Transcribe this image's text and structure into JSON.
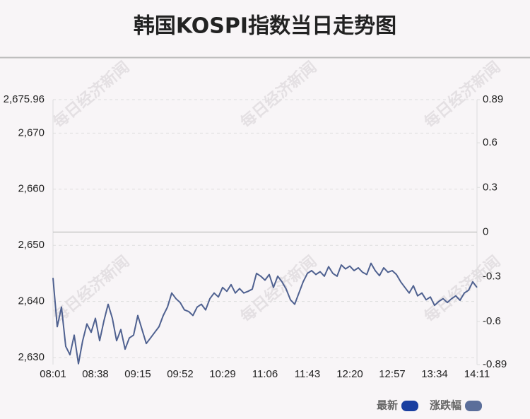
{
  "chart_data": {
    "type": "line",
    "title": "韩国KOSPI指数当日走势图",
    "watermark": "每日经济新闻",
    "categories": [
      "08:01",
      null,
      null,
      null,
      null,
      null,
      null,
      null,
      null,
      null,
      "08:38",
      null,
      null,
      null,
      null,
      null,
      null,
      null,
      null,
      null,
      "09:15",
      null,
      null,
      null,
      null,
      null,
      null,
      null,
      null,
      null,
      "09:52",
      null,
      null,
      null,
      null,
      null,
      null,
      null,
      null,
      null,
      "10:29",
      null,
      null,
      null,
      null,
      null,
      null,
      null,
      null,
      null,
      "11:06",
      null,
      null,
      null,
      null,
      null,
      null,
      null,
      null,
      null,
      "11:43",
      null,
      null,
      null,
      null,
      null,
      null,
      null,
      null,
      null,
      "12:20",
      null,
      null,
      null,
      null,
      null,
      null,
      null,
      null,
      null,
      "12:57",
      null,
      null,
      null,
      null,
      null,
      null,
      null,
      null,
      null,
      "13:34",
      null,
      null,
      null,
      null,
      null,
      null,
      null,
      null,
      null,
      "14:11"
    ],
    "series": [
      {
        "color": "#4f6190",
        "values": [
          2644.2,
          2635.5,
          2639,
          2632,
          2630.5,
          2634,
          2628.9,
          2633,
          2636,
          2634.5,
          2637,
          2633,
          2636.5,
          2639.5,
          2637,
          2633,
          2635,
          2631.5,
          2633.5,
          2634,
          2637.5,
          2635,
          2632.5,
          2633.5,
          2634.5,
          2635.5,
          2637.5,
          2639,
          2641.5,
          2640.5,
          2639.8,
          2638.5,
          2638.2,
          2637.5,
          2639,
          2639.5,
          2638.5,
          2640.5,
          2641.5,
          2640.8,
          2642.5,
          2641.8,
          2643,
          2641.5,
          2642.3,
          2641.5,
          2641.8,
          2642.2,
          2645,
          2644.5,
          2643.8,
          2644.8,
          2642.5,
          2644.5,
          2643.5,
          2642.2,
          2640.3,
          2639.5,
          2641.5,
          2643.5,
          2645,
          2645.5,
          2644.8,
          2645.3,
          2644.5,
          2646.2,
          2645,
          2644.5,
          2646.5,
          2645.8,
          2646.3,
          2645.5,
          2646,
          2645.2,
          2644.8,
          2646.8,
          2645.5,
          2644.6,
          2646,
          2645.2,
          2645.5,
          2644.8,
          2643.5,
          2642.5,
          2641.5,
          2642.8,
          2641,
          2641.5,
          2640.3,
          2640.8,
          2639.3,
          2640,
          2640.5,
          2639.8,
          2640.5,
          2641,
          2640.2,
          2641.5,
          2642,
          2643.5,
          2642.5
        ]
      }
    ],
    "legend": [
      {
        "name": "最新",
        "color": "#1a3fa0"
      },
      {
        "name": "涨跌幅",
        "color": "#5b6e9a"
      }
    ],
    "ylim": [
      2628.75,
      2675.96
    ],
    "yticks": [
      {
        "value": 2630,
        "label": "2,630"
      },
      {
        "value": 2640,
        "label": "2,640"
      },
      {
        "value": 2650,
        "label": "2,650"
      },
      {
        "value": 2660,
        "label": "2,660"
      },
      {
        "value": 2670,
        "label": "2,670"
      },
      {
        "value": 2675.96,
        "label": "2,675.96"
      }
    ],
    "y2lim": [
      -0.89,
      0.89
    ],
    "y2ticks": [
      -0.89,
      -0.6,
      -0.3,
      0,
      0.3,
      0.6,
      0.89
    ],
    "grid": true
  }
}
